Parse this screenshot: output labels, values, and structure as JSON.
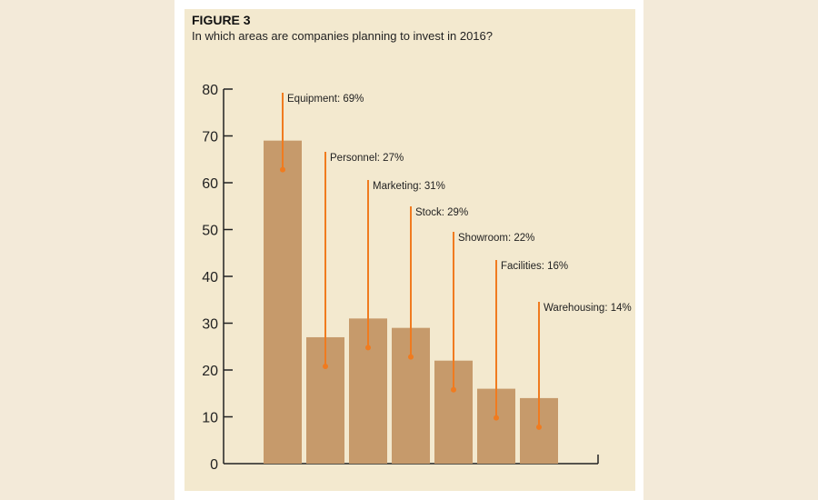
{
  "figure_label": "FIGURE 3",
  "chart_data": {
    "type": "bar",
    "title": "In which areas are companies planning to invest in 2016?",
    "categories": [
      "Equipment",
      "Personnel",
      "Marketing",
      "Stock",
      "Showroom",
      "Facilities",
      "Warehousing"
    ],
    "values": [
      69,
      27,
      31,
      29,
      22,
      16,
      14
    ],
    "annotations": [
      "Equipment: 69%",
      "Personnel: 27%",
      "Marketing: 31%",
      "Stock: 29%",
      "Showroom: 22%",
      "Facilities: 16%",
      "Warehousing: 14%"
    ],
    "yticks": [
      "0",
      "10",
      "20",
      "30",
      "40",
      "50",
      "60",
      "70",
      "80"
    ],
    "ylim": [
      0,
      80
    ],
    "grid": false,
    "xlabel": "",
    "ylabel": ""
  },
  "colors": {
    "bar": "#c69a6b",
    "leader": "#f07b1f",
    "axis": "#222222"
  }
}
